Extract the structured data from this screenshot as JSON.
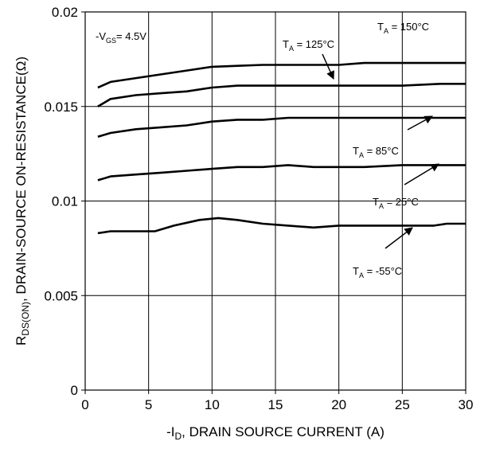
{
  "chart_data": {
    "type": "line",
    "xlabel": {
      "prefix": "-I",
      "sub": "D",
      "rest": ", DRAIN SOURCE CURRENT (A)"
    },
    "ylabel": {
      "prefix": "R",
      "sub": "DS(ON)",
      "rest": ", DRAIN-SOURCE ON-RESISTANCE(Ω)"
    },
    "xlim": [
      0,
      30
    ],
    "ylim": [
      0,
      0.02
    ],
    "xticks": [
      0,
      5,
      10,
      15,
      20,
      25,
      30
    ],
    "xtick_labels": [
      "0",
      "5",
      "10",
      "15",
      "20",
      "25",
      "30"
    ],
    "yticks": [
      0,
      0.005,
      0.01,
      0.015,
      0.02
    ],
    "ytick_labels": [
      "0",
      "0.005",
      "0.01",
      "0.015",
      "0.02"
    ],
    "grid": true,
    "condition": {
      "prefix": "-V",
      "sub": "GS",
      "rest": "= 4.5V"
    },
    "series": [
      {
        "name": "150°C",
        "x": [
          1,
          2,
          4,
          6,
          8,
          10,
          12,
          14,
          16,
          18,
          20,
          22,
          25,
          28,
          30
        ],
        "y": [
          0.016,
          0.0163,
          0.0165,
          0.0167,
          0.0169,
          0.0171,
          0.01715,
          0.0172,
          0.0172,
          0.0172,
          0.0172,
          0.0173,
          0.0173,
          0.0173,
          0.0173
        ]
      },
      {
        "name": "125°C",
        "x": [
          1,
          2,
          4,
          6,
          8,
          10,
          12,
          14,
          16,
          18,
          20,
          22,
          25,
          28,
          30
        ],
        "y": [
          0.015,
          0.0154,
          0.0156,
          0.0157,
          0.0158,
          0.016,
          0.0161,
          0.0161,
          0.0161,
          0.0161,
          0.0161,
          0.0161,
          0.0161,
          0.0162,
          0.0162
        ]
      },
      {
        "name": "85°C",
        "x": [
          1,
          2,
          4,
          6,
          8,
          10,
          12,
          14,
          16,
          18,
          20,
          22,
          25,
          28,
          30
        ],
        "y": [
          0.0134,
          0.0136,
          0.0138,
          0.0139,
          0.014,
          0.0142,
          0.0143,
          0.0143,
          0.0144,
          0.0144,
          0.0144,
          0.0144,
          0.0144,
          0.0144,
          0.0144
        ]
      },
      {
        "name": "25°C",
        "x": [
          1,
          2,
          4,
          6,
          8,
          10,
          12,
          14,
          16,
          18,
          20,
          22,
          25,
          28,
          30
        ],
        "y": [
          0.0111,
          0.0113,
          0.0114,
          0.0115,
          0.0116,
          0.0117,
          0.0118,
          0.0118,
          0.0119,
          0.0118,
          0.0118,
          0.0118,
          0.0119,
          0.0119,
          0.0119
        ]
      },
      {
        "name": "-55°C",
        "x": [
          1,
          2,
          4,
          5.5,
          7,
          9,
          10.5,
          12,
          14,
          16,
          18,
          20,
          22,
          25,
          27.5,
          28.5,
          30
        ],
        "y": [
          0.0083,
          0.0084,
          0.0084,
          0.0084,
          0.0087,
          0.009,
          0.0091,
          0.009,
          0.0088,
          0.0087,
          0.0086,
          0.0087,
          0.0087,
          0.0087,
          0.0087,
          0.0088,
          0.0088
        ]
      }
    ],
    "annotations": [
      {
        "series": "150°C",
        "prefix": "T",
        "sub": "A",
        "rest": " = 150°C",
        "arrow": false
      },
      {
        "series": "125°C",
        "prefix": "T",
        "sub": "A",
        "rest": " = 125°C",
        "arrow": true
      },
      {
        "series": "85°C",
        "prefix": "T",
        "sub": "A",
        "rest": " = 85°C",
        "arrow": true
      },
      {
        "series": "25°C",
        "prefix": "T",
        "sub": "A",
        "rest": " = 25°C",
        "arrow": true
      },
      {
        "series": "-55°C",
        "prefix": "T",
        "sub": "A",
        "rest": " = -55°C",
        "arrow": true
      }
    ]
  }
}
